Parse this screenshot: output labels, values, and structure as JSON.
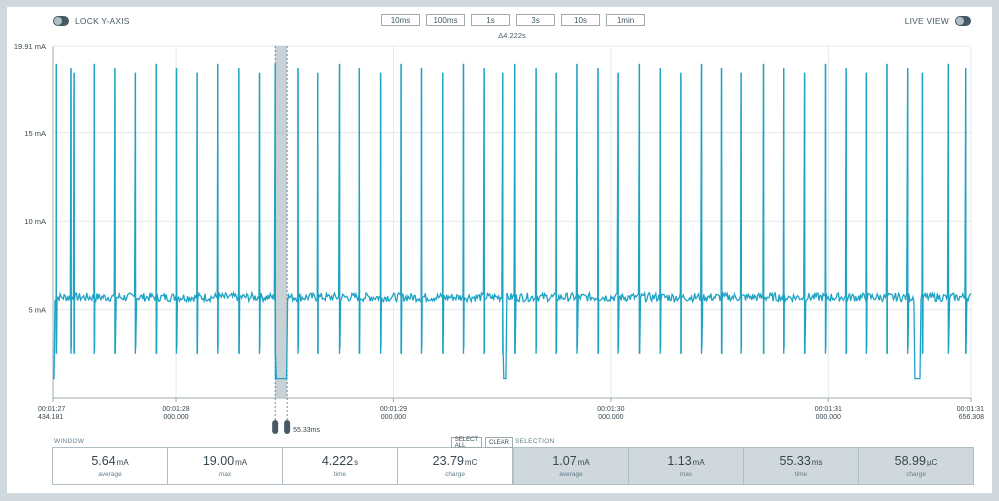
{
  "toolbar": {
    "lock_y_axis": "LOCK Y-AXIS",
    "live_view": "LIVE VIEW",
    "zoom_buttons": [
      "10ms",
      "100ms",
      "1s",
      "3s",
      "10s",
      "1min"
    ],
    "delta": "Δ4.222s"
  },
  "chart_data": {
    "type": "line",
    "title": "",
    "xlabel": "",
    "ylabel": "",
    "ylim": [
      0,
      19.91
    ],
    "yticks": [
      "19.91 mA",
      "15 mA",
      "10 mA",
      "5 mA"
    ],
    "ytick_values": [
      19.91,
      15,
      10,
      5
    ],
    "xlim": [
      87.434181,
      91.656308
    ],
    "xticks": [
      {
        "t": 87.434181,
        "l1": "00:01:27",
        "l2": "434.181"
      },
      {
        "t": 88.0,
        "l1": "00:01:28",
        "l2": "000.000"
      },
      {
        "t": 89.0,
        "l1": "00:01:29",
        "l2": "000.000"
      },
      {
        "t": 90.0,
        "l1": "00:01:30",
        "l2": "000.000"
      },
      {
        "t": 91.0,
        "l1": "00:01:31",
        "l2": "000.000"
      },
      {
        "t": 91.656308,
        "l1": "00:01:31",
        "l2": "656.308"
      }
    ],
    "grid": true,
    "baseline_mA": 5.7,
    "spike_times": [
      87.449,
      87.517,
      87.531,
      87.624,
      87.719,
      87.813,
      87.909,
      88.002,
      88.097,
      88.192,
      88.289,
      88.384,
      88.456,
      88.561,
      88.652,
      88.752,
      88.843,
      88.941,
      89.035,
      89.129,
      89.227,
      89.322,
      89.417,
      89.503,
      89.558,
      89.656,
      89.748,
      89.844,
      89.941,
      90.033,
      90.131,
      90.227,
      90.322,
      90.417,
      90.509,
      90.599,
      90.702,
      90.795,
      90.891,
      90.987,
      91.082,
      91.175,
      91.27,
      91.365,
      91.433,
      91.552,
      91.632
    ],
    "selection": {
      "start": 88.456,
      "end": 88.511
    }
  },
  "marker_label": "55.33ms",
  "window": {
    "title": "WINDOW",
    "stats": [
      {
        "value": "5.64",
        "unit": "mA",
        "label": "average"
      },
      {
        "value": "19.00",
        "unit": "mA",
        "label": "max"
      },
      {
        "value": "4.222",
        "unit": "s",
        "label": "time"
      },
      {
        "value": "23.79",
        "unit": "mC",
        "label": "charge"
      }
    ]
  },
  "selection": {
    "title": "SELECTION",
    "select_all": "SELECT ALL",
    "clear": "CLEAR",
    "stats": [
      {
        "value": "1.07",
        "unit": "mA",
        "label": "average"
      },
      {
        "value": "1.13",
        "unit": "mA",
        "label": "max"
      },
      {
        "value": "55.33",
        "unit": "ms",
        "label": "time"
      },
      {
        "value": "58.99",
        "unit": "µC",
        "label": "charge"
      }
    ]
  },
  "colors": {
    "trace": "#1fa3c4",
    "grid": "#e3e9ec",
    "selection": "#b0bec5",
    "axis": "#9eacb2"
  }
}
